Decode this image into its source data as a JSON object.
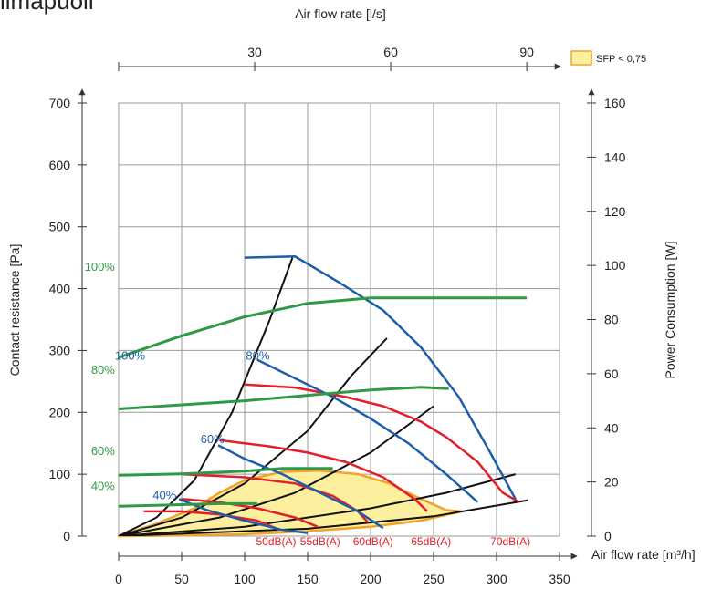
{
  "corner_text": "ilmapuoli",
  "chart_data": {
    "type": "line",
    "title": "",
    "xlabel": "Air flow rate [m³/h]",
    "x_top_label": "Air flow rate [l/s]",
    "ylabel": "Contact resistance [Pa]",
    "y2label": "Power Consumption [W]",
    "xlim": [
      0,
      350
    ],
    "ylim": [
      0,
      700
    ],
    "y2lim": [
      0,
      160
    ],
    "x_ticks": [
      "0",
      "50",
      "100",
      "150",
      "200",
      "250",
      "300",
      "350"
    ],
    "y_ticks": [
      "0",
      "100",
      "200",
      "300",
      "400",
      "500",
      "600",
      "700"
    ],
    "y2_ticks": [
      "0",
      "20",
      "40",
      "60",
      "80",
      "100",
      "120",
      "140",
      "160"
    ],
    "x_top_ticks": [
      "30",
      "60",
      "90"
    ],
    "x_top_tick_values": [
      30,
      60,
      90
    ],
    "grid": true,
    "legend": {
      "label": "SFP < 0,75",
      "position": "top-right",
      "color": "#fcef9e"
    },
    "colors": {
      "power": "#2e9a46",
      "fan_speed": "#1c5fa8",
      "sound": "#e2202b",
      "system": "#111111",
      "sfp_fill": "#fcef9e",
      "sfp_edge": "#f2a32a"
    },
    "sfp_region": [
      [
        0,
        0
      ],
      [
        30,
        20
      ],
      [
        60,
        45
      ],
      [
        80,
        70
      ],
      [
        100,
        90
      ],
      [
        130,
        104
      ],
      [
        160,
        106
      ],
      [
        190,
        100
      ],
      [
        215,
        85
      ],
      [
        240,
        60
      ],
      [
        260,
        42
      ],
      [
        272,
        40
      ],
      [
        240,
        25
      ],
      [
        200,
        15
      ],
      [
        150,
        8
      ],
      [
        100,
        3
      ],
      [
        50,
        1
      ],
      [
        0,
        0
      ]
    ],
    "pressure_series": [
      {
        "name": "100%",
        "label_at": [
          -3,
          285
        ],
        "points": [
          [
            100,
            450
          ],
          [
            140,
            452
          ],
          [
            175,
            410
          ],
          [
            210,
            365
          ],
          [
            240,
            305
          ],
          [
            270,
            225
          ],
          [
            295,
            135
          ],
          [
            315,
            60
          ]
        ]
      },
      {
        "name": "80%",
        "label_at": [
          101,
          285
        ],
        "points": [
          [
            110,
            285
          ],
          [
            140,
            255
          ],
          [
            170,
            225
          ],
          [
            200,
            190
          ],
          [
            230,
            150
          ],
          [
            260,
            100
          ],
          [
            285,
            55
          ]
        ]
      },
      {
        "name": "60%",
        "label_at": [
          65,
          150
        ],
        "points": [
          [
            79,
            147
          ],
          [
            100,
            125
          ],
          [
            130,
            100
          ],
          [
            160,
            70
          ],
          [
            190,
            40
          ],
          [
            210,
            13
          ]
        ]
      },
      {
        "name": "40%",
        "label_at": [
          27,
          60
        ],
        "points": [
          [
            48,
            60
          ],
          [
            70,
            42
          ],
          [
            100,
            25
          ],
          [
            130,
            10
          ],
          [
            150,
            5
          ]
        ]
      }
    ],
    "power_series": [
      {
        "name": "100%",
        "label_at": [
          -3,
          98
        ],
        "points": [
          [
            0,
            66
          ],
          [
            50,
            74
          ],
          [
            100,
            81
          ],
          [
            150,
            86
          ],
          [
            200,
            88
          ],
          [
            250,
            88
          ],
          [
            300,
            88
          ],
          [
            324,
            88
          ]
        ]
      },
      {
        "name": "80%",
        "label_at": [
          -3,
          60
        ],
        "points": [
          [
            0,
            47
          ],
          [
            50,
            48.5
          ],
          [
            100,
            50
          ],
          [
            150,
            52
          ],
          [
            200,
            54
          ],
          [
            240,
            55
          ],
          [
            262,
            54.5
          ]
        ]
      },
      {
        "name": "60%",
        "label_at": [
          -3,
          30
        ],
        "points": [
          [
            0,
            22.5
          ],
          [
            50,
            23
          ],
          [
            100,
            24
          ],
          [
            130,
            25
          ],
          [
            170,
            25
          ]
        ]
      },
      {
        "name": "40%",
        "label_at": [
          -3,
          17
        ],
        "points": [
          [
            0,
            11
          ],
          [
            40,
            11.5
          ],
          [
            80,
            12
          ],
          [
            110,
            12
          ]
        ]
      }
    ],
    "system_curves": [
      {
        "points": [
          [
            0,
            0
          ],
          [
            30,
            30
          ],
          [
            60,
            90
          ],
          [
            90,
            200
          ],
          [
            120,
            350
          ],
          [
            138,
            450
          ]
        ]
      },
      {
        "points": [
          [
            0,
            0
          ],
          [
            50,
            30
          ],
          [
            100,
            85
          ],
          [
            150,
            170
          ],
          [
            185,
            260
          ],
          [
            213,
            320
          ]
        ]
      },
      {
        "points": [
          [
            0,
            0
          ],
          [
            80,
            30
          ],
          [
            140,
            70
          ],
          [
            200,
            135
          ],
          [
            250,
            210
          ]
        ]
      },
      {
        "points": [
          [
            0,
            0
          ],
          [
            100,
            15
          ],
          [
            200,
            45
          ],
          [
            260,
            70
          ],
          [
            315,
            100
          ]
        ]
      },
      {
        "points": [
          [
            0,
            0
          ],
          [
            150,
            12
          ],
          [
            250,
            32
          ],
          [
            325,
            58
          ]
        ]
      }
    ],
    "sound_curves": [
      {
        "name": "50dB(A)",
        "label_at": [
          125,
          -15
        ],
        "points": [
          [
            20,
            40
          ],
          [
            50,
            40
          ],
          [
            80,
            35
          ],
          [
            110,
            25
          ],
          [
            128,
            10
          ]
        ]
      },
      {
        "name": "55dB(A)",
        "label_at": [
          160,
          -15
        ],
        "points": [
          [
            50,
            60
          ],
          [
            80,
            55
          ],
          [
            110,
            45
          ],
          [
            140,
            30
          ],
          [
            158,
            15
          ]
        ]
      },
      {
        "name": "60dB(A)",
        "label_at": [
          202,
          -15
        ],
        "points": [
          [
            50,
            100
          ],
          [
            100,
            95
          ],
          [
            140,
            85
          ],
          [
            170,
            65
          ],
          [
            190,
            40
          ],
          [
            198,
            22
          ]
        ]
      },
      {
        "name": "65dB(A)",
        "label_at": [
          248,
          -15
        ],
        "points": [
          [
            80,
            155
          ],
          [
            120,
            145
          ],
          [
            150,
            135
          ],
          [
            180,
            120
          ],
          [
            210,
            95
          ],
          [
            235,
            60
          ],
          [
            245,
            40
          ]
        ]
      },
      {
        "name": "70dB(A)",
        "label_at": [
          311,
          -15
        ],
        "points": [
          [
            100,
            245
          ],
          [
            140,
            240
          ],
          [
            180,
            225
          ],
          [
            210,
            210
          ],
          [
            240,
            185
          ],
          [
            260,
            160
          ],
          [
            285,
            120
          ],
          [
            305,
            70
          ],
          [
            318,
            55
          ]
        ]
      }
    ]
  }
}
